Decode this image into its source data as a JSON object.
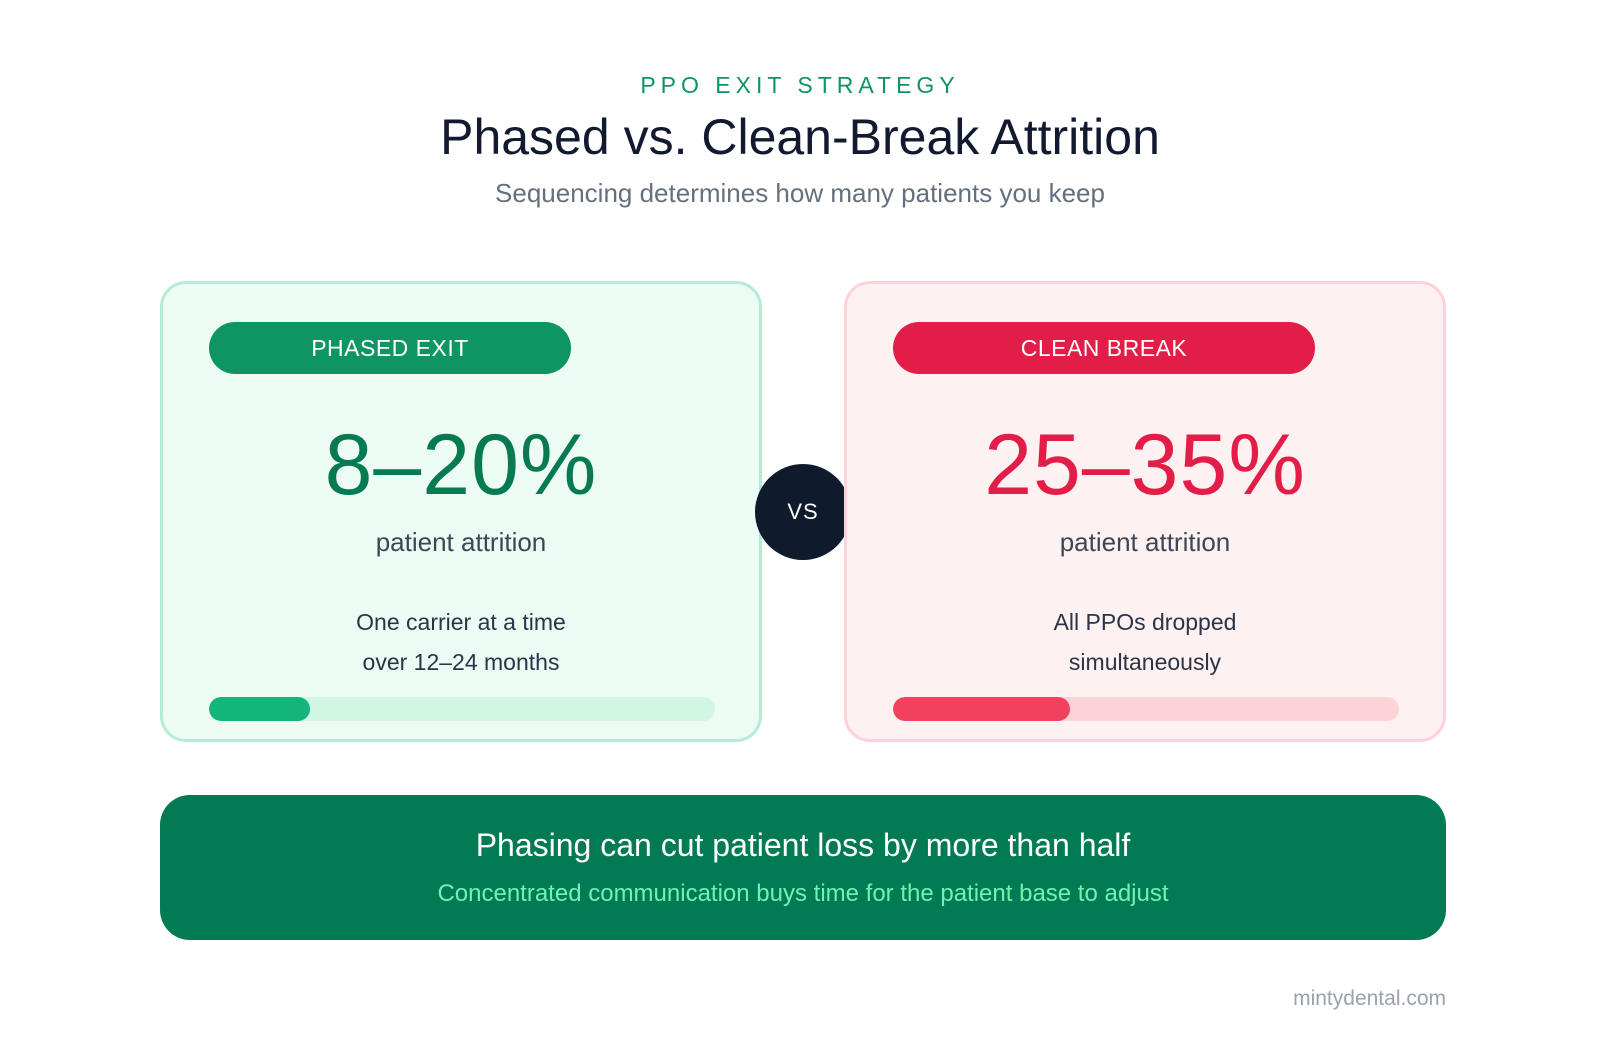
{
  "header": {
    "eyebrow": "PPO EXIT STRATEGY",
    "title": "Phased vs. Clean-Break Attrition",
    "subtitle": "Sequencing determines how many patients you keep"
  },
  "cards": {
    "phased": {
      "badge": "PHASED EXIT",
      "value": "8–20%",
      "label": "patient attrition",
      "desc_line1": "One carrier at a time",
      "desc_line2": "over 12–24 months",
      "bar_fill_fraction": 0.2,
      "accent_color": "#0e9563"
    },
    "clean": {
      "badge": "CLEAN BREAK",
      "value": "25–35%",
      "label": "patient attrition",
      "desc_line1": "All PPOs dropped",
      "desc_line2": "simultaneously",
      "bar_fill_fraction": 0.35,
      "accent_color": "#e11d48"
    }
  },
  "vs_label": "VS",
  "banner": {
    "headline": "Phasing can cut patient loss by more than half",
    "subtext": "Concentrated communication buys time for the patient base to adjust"
  },
  "footer": {
    "site": "mintydental.com"
  }
}
